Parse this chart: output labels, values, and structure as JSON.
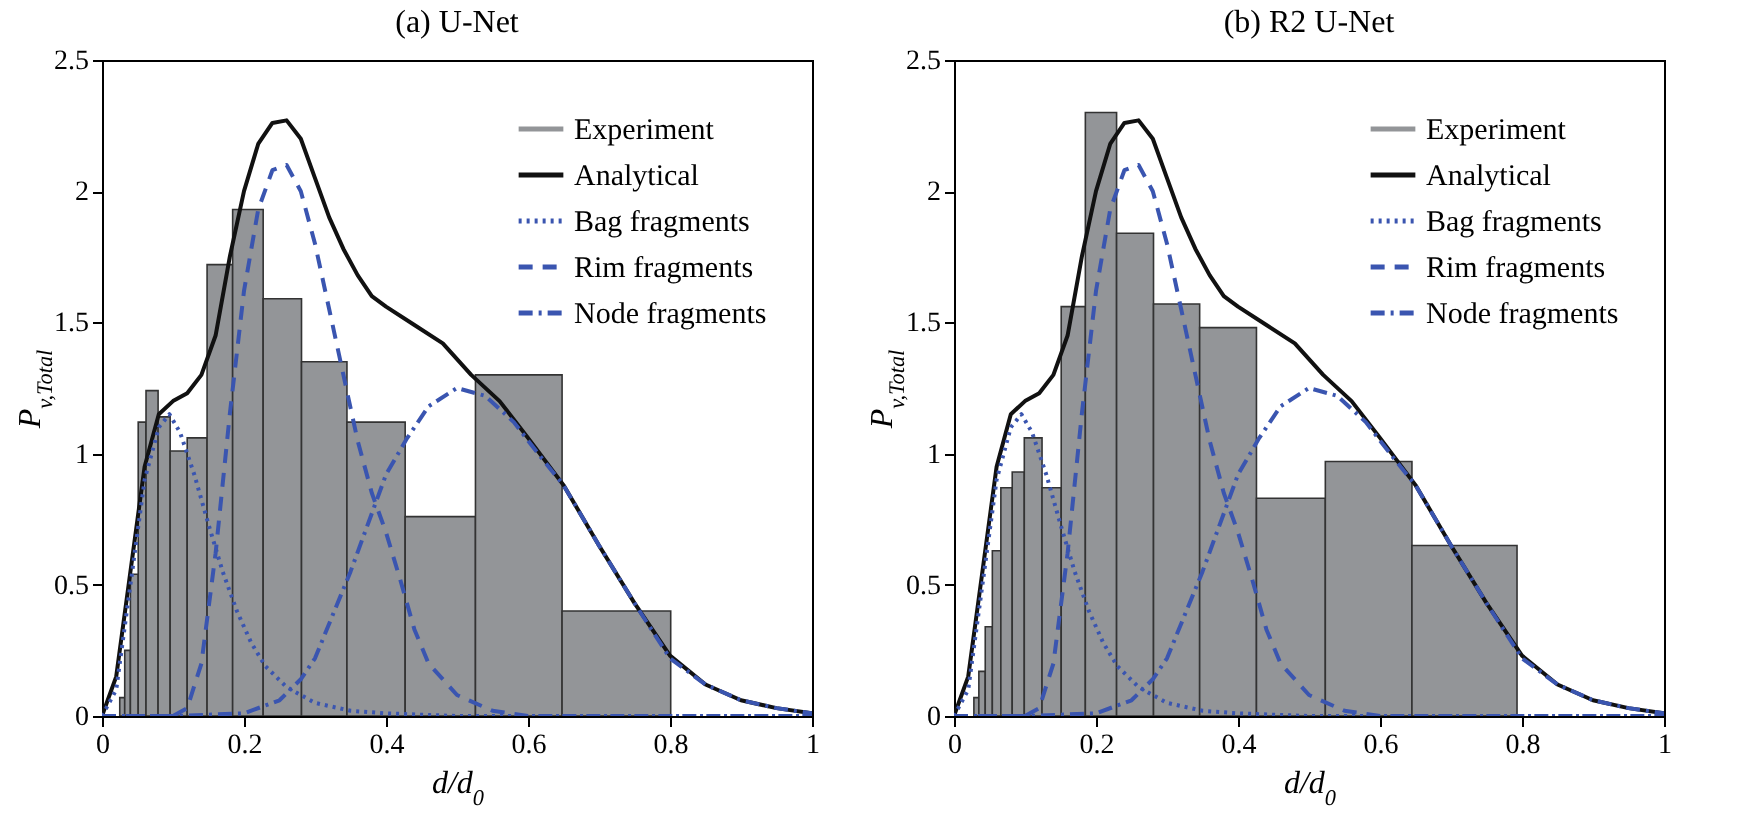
{
  "chart_data": [
    {
      "type": "histogram",
      "title": "(a) U-Net",
      "xlabel": "d/d$_{0}$",
      "ylabel": "P$_{v,Total}$",
      "xlim": [
        0,
        1
      ],
      "xticks": [
        0,
        0.2,
        0.4,
        0.6,
        0.8,
        1
      ],
      "ylim": [
        0,
        2.5
      ],
      "yticks": [
        0,
        0.5,
        1,
        1.5,
        2,
        2.5
      ],
      "legend": "top right",
      "bins": [
        0.025,
        0.032,
        0.04,
        0.051,
        0.062,
        0.079,
        0.096,
        0.12,
        0.148,
        0.184,
        0.227,
        0.281,
        0.345,
        0.427,
        0.526,
        0.648,
        0.801
      ],
      "series": [
        {
          "name": "Experiment",
          "type": "histogram",
          "color": "#939598",
          "values": [
            0.07,
            0.25,
            0.54,
            1.12,
            1.24,
            1.14,
            1.01,
            1.06,
            1.72,
            1.93,
            1.59,
            1.35,
            1.12,
            0.76,
            1.3,
            0.4
          ]
        },
        {
          "name": "Analytical",
          "type": "line",
          "color": "#111111",
          "line_style": "solid",
          "x": [
            0,
            0.02,
            0.04,
            0.06,
            0.08,
            0.1,
            0.12,
            0.14,
            0.16,
            0.18,
            0.2,
            0.22,
            0.24,
            0.26,
            0.28,
            0.3,
            0.32,
            0.34,
            0.36,
            0.38,
            0.4,
            0.44,
            0.48,
            0.52,
            0.56,
            0.6,
            0.65,
            0.7,
            0.75,
            0.8,
            0.85,
            0.9,
            0.95,
            1
          ],
          "values": [
            0,
            0.15,
            0.55,
            0.95,
            1.15,
            1.2,
            1.23,
            1.3,
            1.45,
            1.75,
            2.0,
            2.18,
            2.26,
            2.27,
            2.2,
            2.05,
            1.9,
            1.78,
            1.68,
            1.6,
            1.56,
            1.49,
            1.42,
            1.3,
            1.2,
            1.06,
            0.88,
            0.65,
            0.43,
            0.23,
            0.12,
            0.06,
            0.03,
            0.01
          ]
        },
        {
          "name": "Bag fragments",
          "type": "line",
          "color": "#3a55b0",
          "line_style": "dotted",
          "x": [
            0,
            0.02,
            0.04,
            0.06,
            0.08,
            0.095,
            0.11,
            0.13,
            0.15,
            0.17,
            0.19,
            0.21,
            0.23,
            0.26,
            0.3,
            0.35,
            0.4,
            0.5,
            1
          ],
          "values": [
            0,
            0.1,
            0.5,
            0.9,
            1.1,
            1.15,
            1.08,
            0.92,
            0.73,
            0.55,
            0.4,
            0.28,
            0.19,
            0.11,
            0.05,
            0.02,
            0.01,
            0,
            0
          ]
        },
        {
          "name": "Rim fragments",
          "type": "line",
          "color": "#3a55b0",
          "line_style": "dashed",
          "x": [
            0,
            0.1,
            0.12,
            0.14,
            0.16,
            0.18,
            0.2,
            0.22,
            0.24,
            0.26,
            0.28,
            0.3,
            0.32,
            0.34,
            0.36,
            0.38,
            0.4,
            0.42,
            0.44,
            0.46,
            0.5,
            0.55,
            0.6,
            1
          ],
          "values": [
            0,
            0,
            0.03,
            0.2,
            0.62,
            1.15,
            1.62,
            1.93,
            2.08,
            2.1,
            2.0,
            1.8,
            1.55,
            1.3,
            1.05,
            0.85,
            0.7,
            0.52,
            0.33,
            0.2,
            0.08,
            0.02,
            0,
            0
          ]
        },
        {
          "name": "Node fragments",
          "type": "line",
          "color": "#3a55b0",
          "line_style": "dashdot",
          "x": [
            0,
            0.1,
            0.2,
            0.25,
            0.28,
            0.3,
            0.35,
            0.4,
            0.43,
            0.46,
            0.5,
            0.54,
            0.58,
            0.62,
            0.65,
            0.7,
            0.75,
            0.8,
            0.85,
            0.9,
            0.95,
            1
          ],
          "values": [
            0,
            0,
            0.01,
            0.06,
            0.14,
            0.22,
            0.55,
            0.92,
            1.06,
            1.18,
            1.25,
            1.22,
            1.12,
            0.98,
            0.88,
            0.65,
            0.43,
            0.22,
            0.12,
            0.06,
            0.03,
            0.01
          ]
        }
      ]
    },
    {
      "type": "histogram",
      "title": "(b) R2 U-Net",
      "xlabel": "d/d$_{0}$",
      "ylabel": "P$_{v,Total}$",
      "xlim": [
        0,
        1
      ],
      "xticks": [
        0,
        0.2,
        0.4,
        0.6,
        0.8,
        1
      ],
      "ylim": [
        0,
        2.5
      ],
      "yticks": [
        0,
        0.5,
        1,
        1.5,
        2,
        2.5
      ],
      "legend": "top right",
      "bins": [
        0.028,
        0.035,
        0.044,
        0.054,
        0.066,
        0.082,
        0.099,
        0.124,
        0.151,
        0.185,
        0.229,
        0.281,
        0.346,
        0.426,
        0.523,
        0.645,
        0.793
      ],
      "series": [
        {
          "name": "Experiment",
          "type": "histogram",
          "color": "#939598",
          "values": [
            0.07,
            0.17,
            0.34,
            0.63,
            0.87,
            0.93,
            1.06,
            0.87,
            1.56,
            2.3,
            1.84,
            1.57,
            1.48,
            0.83,
            0.97,
            0.65
          ]
        },
        {
          "name": "Analytical",
          "type": "line",
          "color": "#111111",
          "line_style": "solid",
          "x": [
            0,
            0.02,
            0.04,
            0.06,
            0.08,
            0.1,
            0.12,
            0.14,
            0.16,
            0.18,
            0.2,
            0.22,
            0.24,
            0.26,
            0.28,
            0.3,
            0.32,
            0.34,
            0.36,
            0.38,
            0.4,
            0.44,
            0.48,
            0.52,
            0.56,
            0.6,
            0.65,
            0.7,
            0.75,
            0.8,
            0.85,
            0.9,
            0.95,
            1
          ],
          "values": [
            0,
            0.15,
            0.55,
            0.95,
            1.15,
            1.2,
            1.23,
            1.3,
            1.45,
            1.75,
            2.0,
            2.18,
            2.26,
            2.27,
            2.2,
            2.05,
            1.9,
            1.78,
            1.68,
            1.6,
            1.56,
            1.49,
            1.42,
            1.3,
            1.2,
            1.06,
            0.88,
            0.65,
            0.43,
            0.23,
            0.12,
            0.06,
            0.03,
            0.01
          ]
        },
        {
          "name": "Bag fragments",
          "type": "line",
          "color": "#3a55b0",
          "line_style": "dotted",
          "x": [
            0,
            0.02,
            0.04,
            0.06,
            0.08,
            0.095,
            0.11,
            0.13,
            0.15,
            0.17,
            0.19,
            0.21,
            0.23,
            0.26,
            0.3,
            0.35,
            0.4,
            0.5,
            1
          ],
          "values": [
            0,
            0.1,
            0.5,
            0.9,
            1.1,
            1.15,
            1.08,
            0.92,
            0.73,
            0.55,
            0.4,
            0.28,
            0.19,
            0.11,
            0.05,
            0.02,
            0.01,
            0,
            0
          ]
        },
        {
          "name": "Rim fragments",
          "type": "line",
          "color": "#3a55b0",
          "line_style": "dashed",
          "x": [
            0,
            0.1,
            0.12,
            0.14,
            0.16,
            0.18,
            0.2,
            0.22,
            0.24,
            0.26,
            0.28,
            0.3,
            0.32,
            0.34,
            0.36,
            0.38,
            0.4,
            0.42,
            0.44,
            0.46,
            0.5,
            0.55,
            0.6,
            1
          ],
          "values": [
            0,
            0,
            0.03,
            0.2,
            0.62,
            1.15,
            1.62,
            1.93,
            2.08,
            2.1,
            2.0,
            1.8,
            1.55,
            1.3,
            1.05,
            0.85,
            0.7,
            0.52,
            0.33,
            0.2,
            0.08,
            0.02,
            0,
            0
          ]
        },
        {
          "name": "Node fragments",
          "type": "line",
          "color": "#3a55b0",
          "line_style": "dashdot",
          "x": [
            0,
            0.1,
            0.2,
            0.25,
            0.28,
            0.3,
            0.35,
            0.4,
            0.43,
            0.46,
            0.5,
            0.54,
            0.58,
            0.62,
            0.65,
            0.7,
            0.75,
            0.8,
            0.85,
            0.9,
            0.95,
            1
          ],
          "values": [
            0,
            0,
            0.01,
            0.06,
            0.14,
            0.22,
            0.55,
            0.92,
            1.06,
            1.18,
            1.25,
            1.22,
            1.12,
            0.98,
            0.88,
            0.65,
            0.43,
            0.22,
            0.12,
            0.06,
            0.03,
            0.01
          ]
        }
      ]
    }
  ]
}
